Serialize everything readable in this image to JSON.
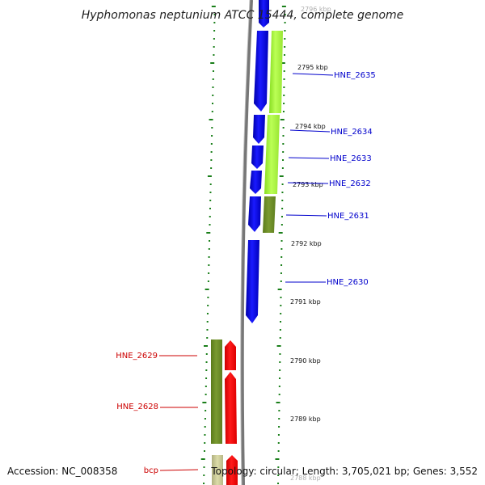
{
  "map": {
    "title": "Hyphomonas neptunium ATCC 15444, complete genome",
    "accession": "Accession: NC_008358",
    "topology": "Topology: circular; Length: 3,705,021 bp; Genes: 3,552",
    "backbone_color": "#808080",
    "tick_color": "#1a7f1a",
    "kbp_labels": [
      {
        "text": "2796 kbp",
        "faded": true
      },
      {
        "text": "2795 kbp"
      },
      {
        "text": "2794 kbp"
      },
      {
        "text": "2793 kbp"
      },
      {
        "text": "2792 kbp"
      },
      {
        "text": "2791 kbp"
      },
      {
        "text": "2790 kbp"
      },
      {
        "text": "2789 kbp"
      },
      {
        "text": "2788 kbp",
        "faded": true
      }
    ],
    "genes_right": [
      {
        "label": "HNE_2635",
        "color": "#0000cc"
      },
      {
        "label": "HNE_2634",
        "color": "#0000cc"
      },
      {
        "label": "HNE_2633",
        "color": "#0000cc"
      },
      {
        "label": "HNE_2632",
        "color": "#0000cc"
      },
      {
        "label": "HNE_2631",
        "color": "#0000cc"
      },
      {
        "label": "HNE_2630",
        "color": "#0000cc"
      }
    ],
    "genes_left": [
      {
        "label": "HNE_2629",
        "color": "#cc0000"
      },
      {
        "label": "HNE_2628",
        "color": "#cc0000"
      },
      {
        "label": "bcp",
        "color": "#cc0000"
      }
    ],
    "feature_colors": {
      "cds_forward": "#0000ee",
      "cds_reverse": "#ff0000",
      "light_green": "#aaff33",
      "olive": "#6b8e23",
      "khaki": "#c8c890"
    }
  }
}
